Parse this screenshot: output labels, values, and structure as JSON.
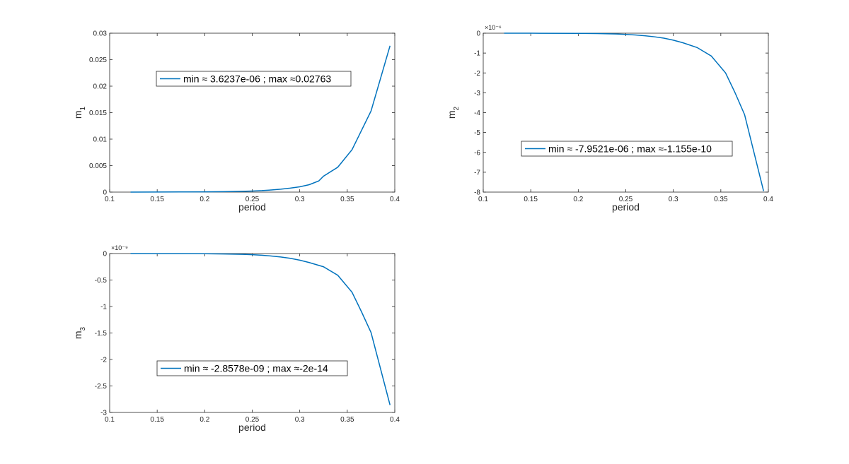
{
  "chart_data": [
    {
      "type": "line",
      "xlabel": "period",
      "ylabel": "m",
      "ylabel_sub": "1",
      "xlim": [
        0.1,
        0.4
      ],
      "ylim": [
        0,
        0.03
      ],
      "xticks": [
        0.1,
        0.15,
        0.2,
        0.25,
        0.3,
        0.35,
        0.4
      ],
      "xtick_labels": [
        "0.1",
        "0.15",
        "0.2",
        "0.25",
        "0.3",
        "0.35",
        "0.4"
      ],
      "yticks": [
        0,
        0.005,
        0.01,
        0.015,
        0.02,
        0.025,
        0.03
      ],
      "ytick_labels": [
        "0",
        "0.005",
        "0.01",
        "0.015",
        "0.02",
        "0.025",
        "0.03"
      ],
      "exponent_label": "",
      "color": "#0072BD",
      "legend": "min ≈ 3.6237e-06 ; max ≈0.02763",
      "legend_position": "upper-middle",
      "x": [
        0.122,
        0.15,
        0.18,
        0.2,
        0.22,
        0.24,
        0.25,
        0.26,
        0.27,
        0.28,
        0.29,
        0.3,
        0.31,
        0.32,
        0.325,
        0.34,
        0.355,
        0.375,
        0.395
      ],
      "y": [
        3.6e-06,
        1e-05,
        3e-05,
        5e-05,
        9e-05,
        0.00015,
        0.0002,
        0.00028,
        0.0004,
        0.00055,
        0.00075,
        0.001,
        0.0014,
        0.0021,
        0.003,
        0.0047,
        0.008,
        0.0153,
        0.02763
      ]
    },
    {
      "type": "line",
      "xlabel": "period",
      "ylabel": "m",
      "ylabel_sub": "2",
      "xlim": [
        0.1,
        0.4
      ],
      "ylim": [
        -8,
        0
      ],
      "xticks": [
        0.1,
        0.15,
        0.2,
        0.25,
        0.3,
        0.35,
        0.4
      ],
      "xtick_labels": [
        "0.1",
        "0.15",
        "0.2",
        "0.25",
        "0.3",
        "0.35",
        "0.4"
      ],
      "yticks": [
        -8,
        -7,
        -6,
        -5,
        -4,
        -3,
        -2,
        -1,
        0
      ],
      "ytick_labels": [
        "-8",
        "-7",
        "-6",
        "-5",
        "-4",
        "-3",
        "-2",
        "-1",
        "0"
      ],
      "exponent_label": "×10⁻⁶",
      "color": "#0072BD",
      "legend": "min ≈ -7.9521e-06 ; max ≈-1.155e-10",
      "legend_position": "lower-middle",
      "x": [
        0.122,
        0.15,
        0.2,
        0.22,
        0.24,
        0.25,
        0.26,
        0.27,
        0.28,
        0.29,
        0.3,
        0.31,
        0.325,
        0.34,
        0.355,
        0.365,
        0.375,
        0.395
      ],
      "y": [
        0,
        -0.002,
        -0.01,
        -0.02,
        -0.04,
        -0.06,
        -0.09,
        -0.13,
        -0.18,
        -0.25,
        -0.35,
        -0.48,
        -0.72,
        -1.15,
        -2.0,
        -3.0,
        -4.1,
        -7.95
      ]
    },
    {
      "type": "line",
      "xlabel": "period",
      "ylabel": "m",
      "ylabel_sub": "3",
      "xlim": [
        0.1,
        0.4
      ],
      "ylim": [
        -3,
        0
      ],
      "xticks": [
        0.1,
        0.15,
        0.2,
        0.25,
        0.3,
        0.35,
        0.4
      ],
      "xtick_labels": [
        "0.1",
        "0.15",
        "0.2",
        "0.25",
        "0.3",
        "0.35",
        "0.4"
      ],
      "yticks": [
        -3,
        -2.5,
        -2,
        -1.5,
        -1,
        -0.5,
        0
      ],
      "ytick_labels": [
        "-3",
        "-2.5",
        "-2",
        "-1.5",
        "-1",
        "-0.5",
        "0"
      ],
      "exponent_label": "×10⁻⁹",
      "color": "#0072BD",
      "legend": "min ≈ -2.8578e-09 ; max ≈-2e-14",
      "legend_position": "lower-middle",
      "x": [
        0.122,
        0.15,
        0.2,
        0.22,
        0.24,
        0.25,
        0.26,
        0.27,
        0.28,
        0.29,
        0.3,
        0.31,
        0.325,
        0.34,
        0.355,
        0.365,
        0.375,
        0.395
      ],
      "y": [
        0,
        -0.001,
        -0.004,
        -0.008,
        -0.015,
        -0.022,
        -0.032,
        -0.046,
        -0.065,
        -0.09,
        -0.125,
        -0.17,
        -0.25,
        -0.41,
        -0.73,
        -1.1,
        -1.49,
        -2.86
      ]
    }
  ]
}
